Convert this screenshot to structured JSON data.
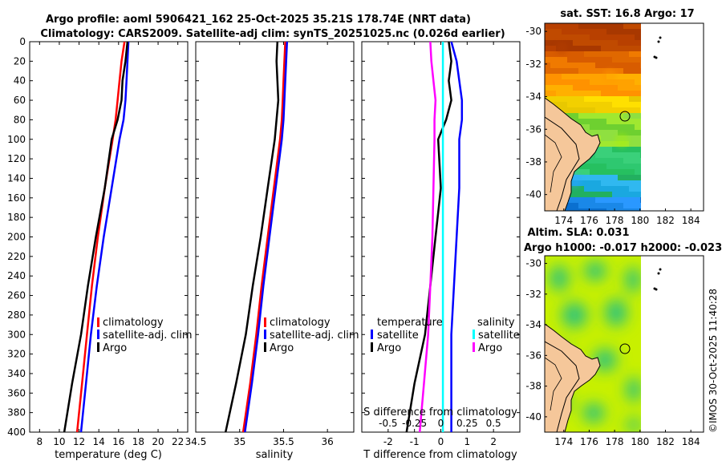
{
  "titles": {
    "line1": "Argo profile: aoml 5906421_162 25-Oct-2025 35.21S 178.74E (NRT data)",
    "line2": "Climatology: CARS2009. Satellite-adj clim: synTS_20251025.nc (0.026d earlier)"
  },
  "colors": {
    "argo": "#000000",
    "climatology": "#ff0000",
    "satellite": "#0000ff",
    "sal_sat": "#00ffff",
    "sal_argo": "#ff00ff"
  },
  "chart_data": [
    {
      "type": "line",
      "name": "temperature-profile",
      "xlabel": "temperature (deg C)",
      "ylabel": "",
      "xlim": [
        7,
        23
      ],
      "ylim": [
        400,
        0
      ],
      "xticks": [
        8,
        10,
        12,
        14,
        16,
        18,
        20,
        22
      ],
      "yticks": [
        0,
        20,
        40,
        60,
        80,
        100,
        120,
        140,
        160,
        180,
        200,
        220,
        240,
        260,
        280,
        300,
        320,
        340,
        360,
        380,
        400
      ],
      "legend": [
        "climatology",
        "satellite-adj. clim",
        "Argo"
      ],
      "series": [
        {
          "name": "climatology",
          "depth": [
            0,
            20,
            40,
            60,
            80,
            100,
            150,
            200,
            250,
            300,
            350,
            400
          ],
          "values": [
            16.6,
            16.3,
            16.1,
            15.9,
            15.7,
            15.4,
            14.6,
            13.9,
            13.3,
            12.8,
            12.3,
            11.8
          ]
        },
        {
          "name": "satellite-adj. clim",
          "depth": [
            0,
            20,
            40,
            60,
            80,
            100,
            150,
            200,
            250,
            300,
            350,
            400
          ],
          "values": [
            17.0,
            16.9,
            16.8,
            16.7,
            16.5,
            16.1,
            15.3,
            14.5,
            13.8,
            13.2,
            12.7,
            12.2
          ]
        },
        {
          "name": "Argo",
          "depth": [
            0,
            20,
            40,
            60,
            80,
            100,
            150,
            200,
            250,
            300,
            350,
            400
          ],
          "values": [
            16.9,
            16.7,
            16.4,
            16.3,
            15.9,
            15.3,
            14.6,
            13.7,
            12.9,
            12.2,
            11.3,
            10.5
          ]
        }
      ]
    },
    {
      "type": "line",
      "name": "salinity-profile",
      "xlabel": "salinity",
      "ylabel": "",
      "xlim": [
        34.5,
        36.3
      ],
      "ylim": [
        400,
        0
      ],
      "xticks": [
        34.5,
        35,
        35.5,
        36
      ],
      "xticklabels": [
        "34.5",
        "35",
        "35.5",
        "36"
      ],
      "legend": [
        "climatology",
        "satellite-adj. clim",
        "Argo"
      ],
      "series": [
        {
          "name": "climatology",
          "depth": [
            0,
            20,
            40,
            60,
            80,
            100,
            150,
            200,
            250,
            300,
            350,
            400
          ],
          "values": [
            35.52,
            35.51,
            35.5,
            35.49,
            35.48,
            35.46,
            35.39,
            35.32,
            35.25,
            35.19,
            35.12,
            35.04
          ]
        },
        {
          "name": "satellite-adj. clim",
          "depth": [
            0,
            20,
            40,
            60,
            80,
            100,
            150,
            200,
            250,
            300,
            350,
            400
          ],
          "values": [
            35.54,
            35.53,
            35.52,
            35.51,
            35.5,
            35.48,
            35.41,
            35.34,
            35.27,
            35.21,
            35.14,
            35.06
          ]
        },
        {
          "name": "Argo",
          "depth": [
            0,
            20,
            40,
            60,
            80,
            100,
            150,
            200,
            250,
            300,
            350,
            400
          ],
          "values": [
            35.43,
            35.42,
            35.43,
            35.44,
            35.42,
            35.4,
            35.32,
            35.24,
            35.15,
            35.07,
            34.96,
            34.84
          ]
        }
      ]
    },
    {
      "type": "line",
      "name": "difference-profile",
      "xlabel": "T difference from climatology",
      "xlabel_top": "S difference from climatology",
      "xlim": [
        -3,
        3
      ],
      "ylim": [
        400,
        0
      ],
      "xticks": [
        -2,
        -1,
        0,
        1,
        2
      ],
      "top_ticks": [
        "-0.5",
        "-0.25",
        "0",
        "0.25",
        "0.5"
      ],
      "legend_t_title": "temperature",
      "legend_s_title": "salinity",
      "legend": [
        "satellite",
        "Argo",
        "satellite",
        "Argo"
      ],
      "series": [
        {
          "name": "T satellite",
          "depth": [
            0,
            20,
            40,
            60,
            80,
            100,
            150,
            200,
            250,
            300,
            350,
            400
          ],
          "values": [
            0.4,
            0.6,
            0.7,
            0.8,
            0.8,
            0.7,
            0.7,
            0.6,
            0.5,
            0.4,
            0.4,
            0.4
          ]
        },
        {
          "name": "T Argo",
          "depth": [
            0,
            20,
            40,
            60,
            80,
            100,
            150,
            200,
            250,
            300,
            350,
            400
          ],
          "values": [
            0.3,
            0.4,
            0.3,
            0.4,
            0.2,
            -0.1,
            0.0,
            -0.2,
            -0.4,
            -0.6,
            -1.0,
            -1.3
          ]
        },
        {
          "name": "S satellite",
          "depth": [
            0,
            100,
            200,
            300,
            400
          ],
          "values": [
            0.02,
            0.02,
            0.02,
            0.02,
            0.02
          ]
        },
        {
          "name": "S Argo",
          "depth": [
            0,
            20,
            40,
            60,
            80,
            100,
            150,
            200,
            250,
            300,
            350,
            400
          ],
          "values": [
            -0.1,
            -0.09,
            -0.07,
            -0.05,
            -0.06,
            -0.06,
            -0.07,
            -0.08,
            -0.1,
            -0.12,
            -0.16,
            -0.2
          ]
        }
      ]
    }
  ],
  "maps": [
    {
      "title": "sat. SST: 16.8 Argo: 17",
      "lonlim": [
        172.5,
        185
      ],
      "latlim": [
        -41,
        -29.5
      ],
      "xticks": [
        "174",
        "176",
        "178",
        "180",
        "182",
        "184"
      ],
      "yticks": [
        "-30",
        "-32",
        "-34",
        "-36",
        "-38",
        "-40"
      ],
      "argo_lon": 178.74,
      "argo_lat": -35.21
    },
    {
      "title1": "Altim. SLA: 0.031",
      "title2": "Argo h1000: -0.017 h2000: -0.023",
      "lonlim": [
        172.5,
        185
      ],
      "latlim": [
        -41,
        -29.5
      ],
      "xticks": [
        "174",
        "176",
        "178",
        "180",
        "182",
        "184"
      ],
      "yticks": [
        "-30",
        "-32",
        "-34",
        "-36",
        "-38",
        "-40"
      ],
      "argo_lon": 178.74,
      "argo_lat": -35.21
    }
  ],
  "watermark": "©IMOS 30-Oct-2025 11:40:28"
}
